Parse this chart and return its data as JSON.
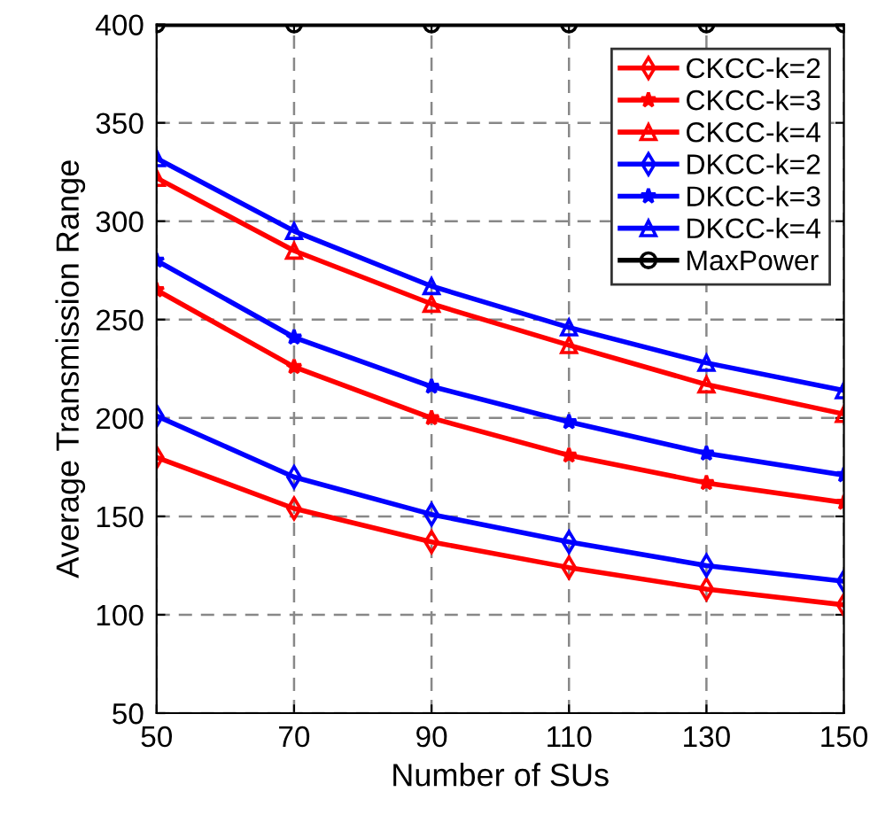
{
  "chart_data": {
    "type": "line",
    "xlabel": "Number of SUs",
    "ylabel": "Average Transmission Range",
    "x": [
      50,
      70,
      90,
      110,
      130,
      150
    ],
    "xlim": [
      50,
      150
    ],
    "xticks": [
      50,
      70,
      90,
      110,
      130,
      150
    ],
    "ylim": [
      50,
      400
    ],
    "yticks": [
      50,
      100,
      150,
      200,
      250,
      300,
      350,
      400
    ],
    "grid": true,
    "legend": "top right",
    "line_style": "solid",
    "series": [
      {
        "name": "CKCC-k=2",
        "color": "#ff0000",
        "marker": "diamond",
        "values": [
          180,
          154,
          137,
          124,
          113,
          105
        ]
      },
      {
        "name": "CKCC-k=3",
        "color": "#ff0000",
        "marker": "star",
        "values": [
          265,
          226,
          200,
          181,
          167,
          157
        ]
      },
      {
        "name": "CKCC-k=4",
        "color": "#ff0000",
        "marker": "triangle",
        "values": [
          322,
          285,
          258,
          237,
          217,
          202
        ]
      },
      {
        "name": "DKCC-k=2",
        "color": "#0000ff",
        "marker": "diamond",
        "values": [
          201,
          170,
          151,
          137,
          125,
          117
        ]
      },
      {
        "name": "DKCC-k=3",
        "color": "#0000ff",
        "marker": "star",
        "values": [
          280,
          241,
          216,
          198,
          182,
          171
        ]
      },
      {
        "name": "DKCC-k=4",
        "color": "#0000ff",
        "marker": "triangle",
        "values": [
          332,
          295,
          267,
          246,
          228,
          214
        ]
      },
      {
        "name": "MaxPower",
        "color": "#000000",
        "marker": "circle",
        "values": [
          400,
          400,
          400,
          400,
          400,
          400
        ]
      }
    ]
  }
}
